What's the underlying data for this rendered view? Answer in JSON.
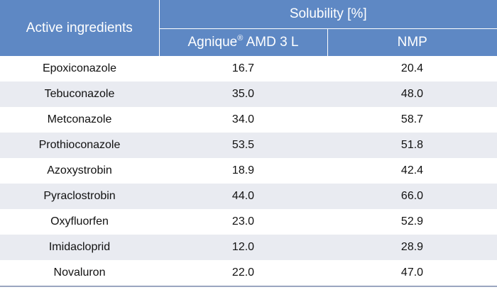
{
  "table": {
    "header": {
      "row_label": "Active ingredients",
      "group_label": "Solubility [%]",
      "col1_name": "Agnique",
      "col1_reg": "®",
      "col1_suffix": " AMD 3 L",
      "col2_name": "NMP"
    },
    "rows": [
      {
        "name": "Epoxiconazole",
        "agnique": "16.7",
        "nmp": "20.4"
      },
      {
        "name": "Tebuconazole",
        "agnique": "35.0",
        "nmp": "48.0"
      },
      {
        "name": "Metconazole",
        "agnique": "34.0",
        "nmp": "58.7"
      },
      {
        "name": "Prothioconazole",
        "agnique": "53.5",
        "nmp": "51.8"
      },
      {
        "name": "Azoxystrobin",
        "agnique": "18.9",
        "nmp": "42.4"
      },
      {
        "name": "Pyraclostrobin",
        "agnique": "44.0",
        "nmp": "66.0"
      },
      {
        "name": "Oxyfluorfen",
        "agnique": "23.0",
        "nmp": "52.9"
      },
      {
        "name": "Imidacloprid",
        "agnique": "12.0",
        "nmp": "28.9"
      },
      {
        "name": "Novaluron",
        "agnique": "22.0",
        "nmp": "47.0"
      }
    ],
    "colors": {
      "header_bg": "#5e88c4",
      "stripe_bg": "#e9ebf1"
    }
  }
}
